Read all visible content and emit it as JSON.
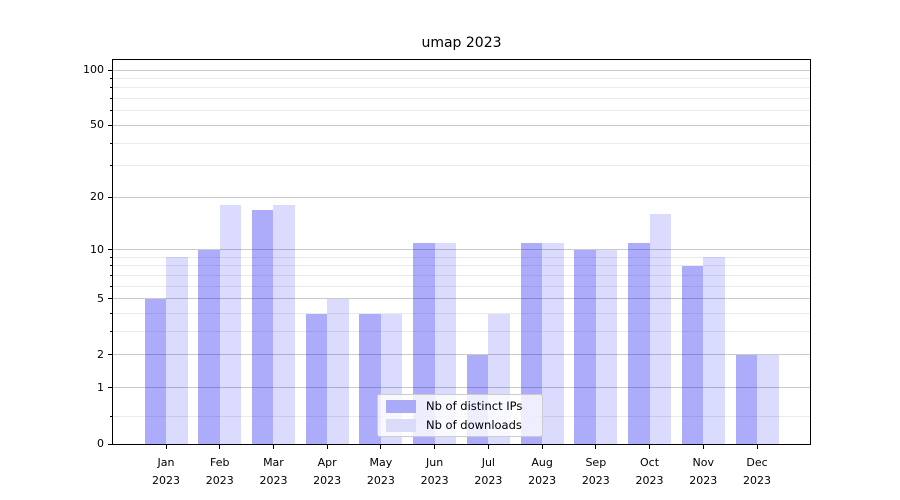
{
  "title": "umap 2023",
  "chart_data": {
    "type": "bar",
    "title": "umap 2023",
    "categories": [
      "Jan 2023",
      "Feb 2023",
      "Mar 2023",
      "Apr 2023",
      "May 2023",
      "Jun 2023",
      "Jul 2023",
      "Aug 2023",
      "Sep 2023",
      "Oct 2023",
      "Nov 2023",
      "Dec 2023"
    ],
    "x_tick_month": [
      "Jan",
      "Feb",
      "Mar",
      "Apr",
      "May",
      "Jun",
      "Jul",
      "Aug",
      "Sep",
      "Oct",
      "Nov",
      "Dec"
    ],
    "x_tick_year": [
      "2023",
      "2023",
      "2023",
      "2023",
      "2023",
      "2023",
      "2023",
      "2023",
      "2023",
      "2023",
      "2023",
      "2023"
    ],
    "series": [
      {
        "name": "Nb of distinct IPs",
        "color": "#aaaaf9",
        "fill": "rgba(12,12,240,0.34)",
        "values": [
          5,
          10,
          17,
          4,
          4,
          11,
          2,
          11,
          10,
          11,
          8,
          2
        ]
      },
      {
        "name": "Nb of downloads",
        "color": "#dadaf9",
        "fill": "rgba(12,12,240,0.15)",
        "values": [
          9,
          18,
          18,
          5,
          4,
          11,
          4,
          11,
          10,
          16,
          9,
          2
        ]
      }
    ],
    "xlabel": "",
    "ylabel": "",
    "yscale": "log1p",
    "ylim": [
      0,
      113
    ],
    "y_major_ticks": [
      0,
      1,
      2,
      5,
      10,
      20,
      50,
      100
    ],
    "y_minor_gridlines": [
      0.4,
      3,
      4,
      6,
      7,
      8,
      9,
      30,
      40,
      60,
      70,
      80,
      90
    ],
    "grid": true,
    "legend_position": "lower center"
  },
  "legend": {
    "items": [
      {
        "label": "Nb of distinct IPs",
        "color": "#aaaaf9"
      },
      {
        "label": "Nb of downloads",
        "color": "#dadaf9"
      }
    ]
  },
  "colors": {
    "background": "#ffffff",
    "spine": "#000000",
    "grid_major": "#c9c9c9",
    "grid_minor": "#eaeaea",
    "text": "#000000",
    "legend_border": "#cccccc",
    "legend_bg": "rgba(255,255,255,0.8)"
  }
}
